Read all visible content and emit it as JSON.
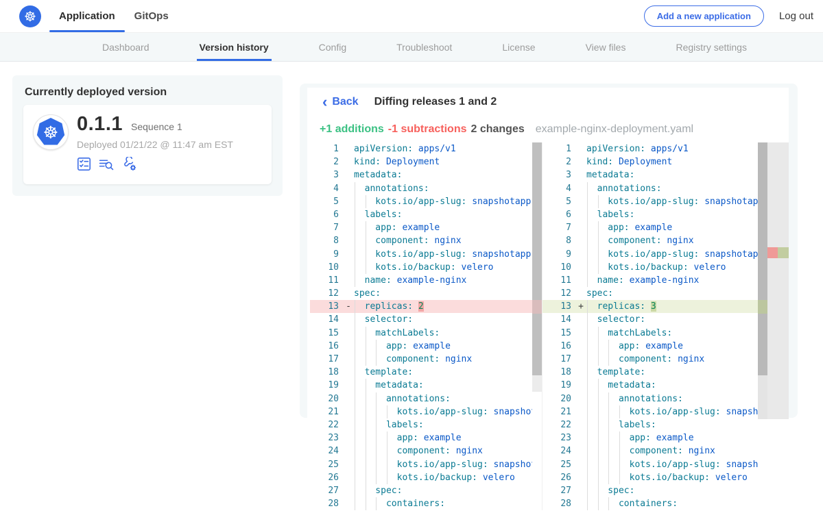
{
  "colors": {
    "accent_blue": "#326ce5",
    "subnav_bg": "#f4f8f9",
    "diff_add_green": "#3bc183",
    "diff_sub_red": "#f7605c",
    "yaml_key": "#0a7a93",
    "yaml_string": "#0a58c7",
    "yaml_number": "#098658",
    "line_delete_bg": "#fbdcdc",
    "line_insert_bg": "#edf2dc"
  },
  "topnav": {
    "logo_icon": "kubernetes-wheel-icon",
    "tabs": [
      {
        "label": "Application",
        "active": true
      },
      {
        "label": "GitOps",
        "active": false
      }
    ],
    "add_app_button": "Add a new application",
    "logout_label": "Log out"
  },
  "subnav": {
    "items": [
      {
        "label": "Dashboard",
        "active": false
      },
      {
        "label": "Version history",
        "active": true
      },
      {
        "label": "Config",
        "active": false
      },
      {
        "label": "Troubleshoot",
        "active": false
      },
      {
        "label": "License",
        "active": false
      },
      {
        "label": "View files",
        "active": false
      },
      {
        "label": "Registry settings",
        "active": false
      }
    ]
  },
  "deployed_card": {
    "title": "Currently deployed version",
    "app_icon": "kubernetes-logo-badge",
    "version": "0.1.1",
    "sequence": "Sequence 1",
    "deployed_at": "Deployed 01/21/22 @ 11:47 am EST",
    "action_icons": [
      "preflight-checks-icon",
      "deploy-logs-icon",
      "edit-config-icon"
    ]
  },
  "diff": {
    "back_label": "Back",
    "title": "Diffing releases 1 and 2",
    "additions": "+1 additions",
    "subtractions": "-1 subtractions",
    "changes": "2 changes",
    "filename": "example-nginx-deployment.yaml",
    "left": {
      "lines": [
        {
          "n": 1,
          "indent": 0,
          "key": "apiVersion",
          "value": "apps/v1",
          "vtype": "str"
        },
        {
          "n": 2,
          "indent": 0,
          "key": "kind",
          "value": "Deployment",
          "vtype": "str"
        },
        {
          "n": 3,
          "indent": 0,
          "key": "metadata"
        },
        {
          "n": 4,
          "indent": 2,
          "key": "annotations"
        },
        {
          "n": 5,
          "indent": 4,
          "key": "kots.io/app-slug",
          "value": "snapshotapp-mu",
          "vtype": "str"
        },
        {
          "n": 6,
          "indent": 2,
          "key": "labels"
        },
        {
          "n": 7,
          "indent": 4,
          "key": "app",
          "value": "example",
          "vtype": "str"
        },
        {
          "n": 8,
          "indent": 4,
          "key": "component",
          "value": "nginx",
          "vtype": "str"
        },
        {
          "n": 9,
          "indent": 4,
          "key": "kots.io/app-slug",
          "value": "snapshotapp-mu",
          "vtype": "str"
        },
        {
          "n": 10,
          "indent": 4,
          "key": "kots.io/backup",
          "value": "velero",
          "vtype": "str"
        },
        {
          "n": 11,
          "indent": 2,
          "key": "name",
          "value": "example-nginx",
          "vtype": "str"
        },
        {
          "n": 12,
          "indent": 0,
          "key": "spec"
        },
        {
          "n": 13,
          "indent": 2,
          "key": "replicas",
          "value": "2",
          "vtype": "num",
          "sign": "-",
          "diff": "del",
          "value_highlight": true
        },
        {
          "n": 14,
          "indent": 2,
          "key": "selector"
        },
        {
          "n": 15,
          "indent": 4,
          "key": "matchLabels"
        },
        {
          "n": 16,
          "indent": 6,
          "key": "app",
          "value": "example",
          "vtype": "str"
        },
        {
          "n": 17,
          "indent": 6,
          "key": "component",
          "value": "nginx",
          "vtype": "str"
        },
        {
          "n": 18,
          "indent": 2,
          "key": "template"
        },
        {
          "n": 19,
          "indent": 4,
          "key": "metadata"
        },
        {
          "n": 20,
          "indent": 6,
          "key": "annotations"
        },
        {
          "n": 21,
          "indent": 8,
          "key": "kots.io/app-slug",
          "value": "snapshotap",
          "vtype": "str"
        },
        {
          "n": 22,
          "indent": 6,
          "key": "labels"
        },
        {
          "n": 23,
          "indent": 8,
          "key": "app",
          "value": "example",
          "vtype": "str"
        },
        {
          "n": 24,
          "indent": 8,
          "key": "component",
          "value": "nginx",
          "vtype": "str"
        },
        {
          "n": 25,
          "indent": 8,
          "key": "kots.io/app-slug",
          "value": "snapshotap",
          "vtype": "str"
        },
        {
          "n": 26,
          "indent": 8,
          "key": "kots.io/backup",
          "value": "velero",
          "vtype": "str"
        },
        {
          "n": 27,
          "indent": 4,
          "key": "spec"
        },
        {
          "n": 28,
          "indent": 6,
          "key": "containers"
        }
      ]
    },
    "right": {
      "lines": [
        {
          "n": 1,
          "indent": 0,
          "key": "apiVersion",
          "value": "apps/v1",
          "vtype": "str"
        },
        {
          "n": 2,
          "indent": 0,
          "key": "kind",
          "value": "Deployment",
          "vtype": "str"
        },
        {
          "n": 3,
          "indent": 0,
          "key": "metadata"
        },
        {
          "n": 4,
          "indent": 2,
          "key": "annotations"
        },
        {
          "n": 5,
          "indent": 4,
          "key": "kots.io/app-slug",
          "value": "snapshotapp-mu",
          "vtype": "str"
        },
        {
          "n": 6,
          "indent": 2,
          "key": "labels"
        },
        {
          "n": 7,
          "indent": 4,
          "key": "app",
          "value": "example",
          "vtype": "str"
        },
        {
          "n": 8,
          "indent": 4,
          "key": "component",
          "value": "nginx",
          "vtype": "str"
        },
        {
          "n": 9,
          "indent": 4,
          "key": "kots.io/app-slug",
          "value": "snapshotapp-mu",
          "vtype": "str"
        },
        {
          "n": 10,
          "indent": 4,
          "key": "kots.io/backup",
          "value": "velero",
          "vtype": "str"
        },
        {
          "n": 11,
          "indent": 2,
          "key": "name",
          "value": "example-nginx",
          "vtype": "str"
        },
        {
          "n": 12,
          "indent": 0,
          "key": "spec"
        },
        {
          "n": 13,
          "indent": 2,
          "key": "replicas",
          "value": "3",
          "vtype": "num",
          "sign": "+",
          "diff": "ins",
          "value_highlight": true
        },
        {
          "n": 14,
          "indent": 2,
          "key": "selector"
        },
        {
          "n": 15,
          "indent": 4,
          "key": "matchLabels"
        },
        {
          "n": 16,
          "indent": 6,
          "key": "app",
          "value": "example",
          "vtype": "str"
        },
        {
          "n": 17,
          "indent": 6,
          "key": "component",
          "value": "nginx",
          "vtype": "str"
        },
        {
          "n": 18,
          "indent": 2,
          "key": "template"
        },
        {
          "n": 19,
          "indent": 4,
          "key": "metadata"
        },
        {
          "n": 20,
          "indent": 6,
          "key": "annotations"
        },
        {
          "n": 21,
          "indent": 8,
          "key": "kots.io/app-slug",
          "value": "snapshotap",
          "vtype": "str"
        },
        {
          "n": 22,
          "indent": 6,
          "key": "labels"
        },
        {
          "n": 23,
          "indent": 8,
          "key": "app",
          "value": "example",
          "vtype": "str"
        },
        {
          "n": 24,
          "indent": 8,
          "key": "component",
          "value": "nginx",
          "vtype": "str"
        },
        {
          "n": 25,
          "indent": 8,
          "key": "kots.io/app-slug",
          "value": "snapshotap",
          "vtype": "str"
        },
        {
          "n": 26,
          "indent": 8,
          "key": "kots.io/backup",
          "value": "velero",
          "vtype": "str"
        },
        {
          "n": 27,
          "indent": 4,
          "key": "spec"
        },
        {
          "n": 28,
          "indent": 6,
          "key": "containers"
        }
      ]
    }
  }
}
